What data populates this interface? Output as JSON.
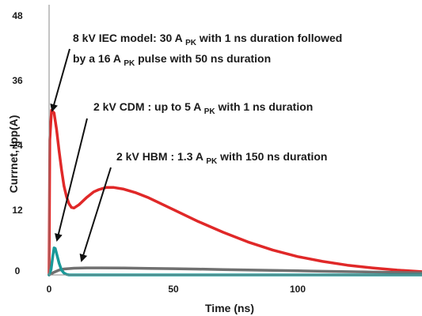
{
  "chart_data": {
    "type": "line",
    "xlabel": "Time (ns)",
    "ylabel": "Currnet, Ipp(A)",
    "xlim": [
      0,
      150
    ],
    "ylim": [
      0,
      48
    ],
    "x_ticks": [
      "0",
      "50",
      "100"
    ],
    "y_ticks": [
      "0",
      "12",
      "24",
      "36",
      "48"
    ],
    "grid": false,
    "series": [
      {
        "color": "#e02828",
        "x": [
          0,
          0.3,
          1,
          2,
          3,
          4,
          5,
          6,
          7,
          8,
          9,
          10,
          12,
          15,
          18,
          20,
          23,
          26,
          30,
          35,
          40,
          45,
          50,
          60,
          70,
          80,
          90,
          100,
          110,
          120,
          130,
          140,
          150
        ],
        "y": [
          0,
          25,
          30.5,
          30,
          27,
          23,
          19.5,
          16.5,
          14.5,
          13.2,
          12.5,
          12.4,
          13,
          14.3,
          15.4,
          15.8,
          16.2,
          16.2,
          15.9,
          15.2,
          14.3,
          13.2,
          12.1,
          9.9,
          7.9,
          6.1,
          4.6,
          3.4,
          2.5,
          1.8,
          1.3,
          0.9,
          0.6
        ]
      },
      {
        "color": "#707070",
        "x": [
          0,
          2,
          4,
          6,
          10,
          15,
          20,
          30,
          40,
          50,
          60,
          70,
          80,
          90,
          100,
          110,
          120,
          130,
          140,
          150
        ],
        "y": [
          0,
          0.5,
          0.9,
          1.1,
          1.25,
          1.3,
          1.3,
          1.28,
          1.22,
          1.15,
          1.08,
          1.0,
          0.92,
          0.84,
          0.76,
          0.68,
          0.6,
          0.52,
          0.45,
          0.4
        ]
      },
      {
        "color": "#1a9999",
        "x": [
          0,
          0.8,
          1.5,
          2,
          2.5,
          3,
          4,
          5,
          6,
          7,
          8,
          10,
          150
        ],
        "y": [
          0,
          1,
          3.5,
          5,
          4.9,
          4,
          2.2,
          0.9,
          0.35,
          0.1,
          0,
          0,
          0
        ]
      }
    ],
    "annotations": [
      {
        "lines": [
          {
            "parts": [
              {
                "t": "8 kV IEC model: 30 A "
              },
              {
                "t": "PK",
                "sub": true
              },
              {
                "t": " with 1 ns duration followed"
              }
            ]
          },
          {
            "parts": [
              {
                "t": "by a 16 A "
              },
              {
                "t": "PK",
                "sub": true
              },
              {
                "t": " pulse with 50 ns duration"
              }
            ]
          }
        ]
      },
      {
        "lines": [
          {
            "parts": [
              {
                "t": "2 kV CDM : up to 5 A "
              },
              {
                "t": "PK",
                "sub": true
              },
              {
                "t": " with 1 ns duration"
              }
            ]
          }
        ]
      },
      {
        "lines": [
          {
            "parts": [
              {
                "t": "2 kV HBM : 1.3 A "
              },
              {
                "t": "PK",
                "sub": true
              },
              {
                "t": " with 150 ns duration"
              }
            ]
          }
        ]
      }
    ]
  }
}
